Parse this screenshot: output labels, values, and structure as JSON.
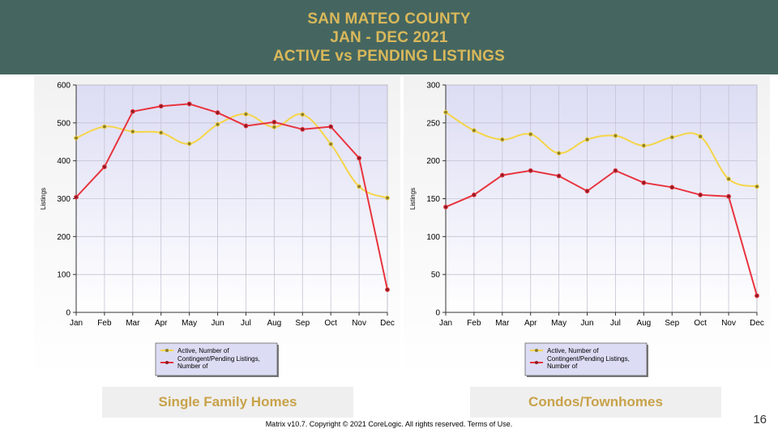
{
  "header": {
    "line1": "SAN MATEO COUNTY",
    "line2": "JAN - DEC 2021",
    "line3": "ACTIVE vs PENDING LISTINGS"
  },
  "captions": {
    "left": "Single Family Homes",
    "right": "Condos/Townhomes"
  },
  "footer": {
    "copyright": "Matrix v10.7. Copyright © 2021 CoreLogic. All rights reserved.",
    "terms": "Terms of Use."
  },
  "page_number": "16",
  "colors": {
    "header_bg": "#456660",
    "title_gold": "#d9b85a",
    "active_series": "#f5d547",
    "pending_series": "#e8343e",
    "plot_bg_top": "#dcdcf4",
    "plot_bg_bottom": "#ffffff"
  },
  "chart_data": [
    {
      "type": "line",
      "caption": "Single Family Homes",
      "title": "",
      "xlabel": "",
      "ylabel": "Listings",
      "categories": [
        "Jan",
        "Feb",
        "Mar",
        "Apr",
        "May",
        "Jun",
        "Jul",
        "Aug",
        "Sep",
        "Oct",
        "Nov",
        "Dec"
      ],
      "ylim": [
        0,
        600
      ],
      "yticks": [
        0,
        100,
        200,
        300,
        400,
        500,
        600
      ],
      "grid": true,
      "legend_position": "bottom",
      "series": [
        {
          "name": "Active, Number of",
          "color": "#f5d547",
          "values": [
            460,
            490,
            477,
            474,
            445,
            496,
            523,
            489,
            522,
            444,
            332,
            302
          ]
        },
        {
          "name": "Contingent/Pending Listings, Number of",
          "color": "#e8343e",
          "values": [
            304,
            384,
            530,
            544,
            550,
            527,
            492,
            502,
            483,
            490,
            407,
            60
          ]
        }
      ]
    },
    {
      "type": "line",
      "caption": "Condos/Townhomes",
      "title": "",
      "xlabel": "",
      "ylabel": "Listings",
      "categories": [
        "Jan",
        "Feb",
        "Mar",
        "Apr",
        "May",
        "Jun",
        "Jul",
        "Aug",
        "Sep",
        "Oct",
        "Nov",
        "Dec"
      ],
      "ylim": [
        0,
        300
      ],
      "yticks": [
        0,
        50,
        100,
        150,
        200,
        250,
        300
      ],
      "grid": true,
      "legend_position": "bottom",
      "series": [
        {
          "name": "Active, Number of",
          "color": "#f5d547",
          "values": [
            264,
            240,
            228,
            235,
            210,
            228,
            233,
            220,
            231,
            232,
            176,
            166
          ]
        },
        {
          "name": "Contingent/Pending Listings, Number of",
          "color": "#e8343e",
          "values": [
            139,
            155,
            181,
            187,
            180,
            160,
            187,
            171,
            165,
            155,
            153,
            22
          ]
        }
      ]
    }
  ]
}
